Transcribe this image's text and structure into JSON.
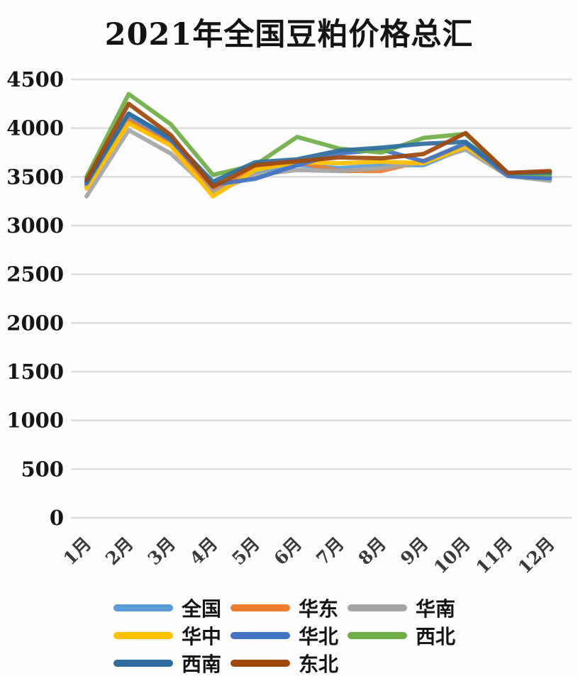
{
  "page": {
    "title": "2021年全国豆粕价格总汇"
  },
  "chart_data": {
    "type": "line",
    "title": "2021年全国豆粕价格总汇",
    "xlabel": "",
    "ylabel": "",
    "categories": [
      "1月",
      "2月",
      "3月",
      "4月",
      "5月",
      "6月",
      "7月",
      "8月",
      "9月",
      "10月",
      "11月",
      "12月"
    ],
    "ylim": [
      0,
      4500
    ],
    "yticks": [
      0,
      500,
      1000,
      1500,
      2000,
      2500,
      3000,
      3500,
      4000,
      4500
    ],
    "grid": "horizontal",
    "legend_position": "bottom",
    "series": [
      {
        "name": "全国",
        "color": "#5B9BD5",
        "values": [
          3400,
          4100,
          3850,
          3380,
          3550,
          3620,
          3590,
          3620,
          3620,
          3800,
          3520,
          3505
        ]
      },
      {
        "name": "华东",
        "color": "#ED7D31",
        "values": [
          3420,
          4080,
          3830,
          3360,
          3600,
          3650,
          3560,
          3560,
          3665,
          3820,
          3530,
          3540
        ]
      },
      {
        "name": "华南",
        "color": "#A5A5A5",
        "values": [
          3300,
          3980,
          3740,
          3340,
          3520,
          3570,
          3560,
          3590,
          3650,
          3780,
          3510,
          3460
        ]
      },
      {
        "name": "华中",
        "color": "#FFC000",
        "values": [
          3380,
          4050,
          3820,
          3300,
          3570,
          3650,
          3640,
          3655,
          3640,
          3810,
          3520,
          3530
        ]
      },
      {
        "name": "华北",
        "color": "#4472C4",
        "values": [
          3430,
          4150,
          3880,
          3420,
          3480,
          3620,
          3740,
          3780,
          3660,
          3845,
          3510,
          3485
        ]
      },
      {
        "name": "西北",
        "color": "#70AD47",
        "values": [
          3500,
          4350,
          4040,
          3520,
          3620,
          3910,
          3790,
          3750,
          3900,
          3940,
          3540,
          3525
        ]
      },
      {
        "name": "西南",
        "color": "#2E6E9E",
        "values": [
          3450,
          4150,
          3900,
          3450,
          3650,
          3680,
          3770,
          3800,
          3840,
          3860,
          3540,
          3545
        ]
      },
      {
        "name": "东北",
        "color": "#9E480E",
        "values": [
          3470,
          4250,
          3930,
          3400,
          3620,
          3660,
          3700,
          3690,
          3735,
          3950,
          3540,
          3560
        ]
      }
    ]
  }
}
